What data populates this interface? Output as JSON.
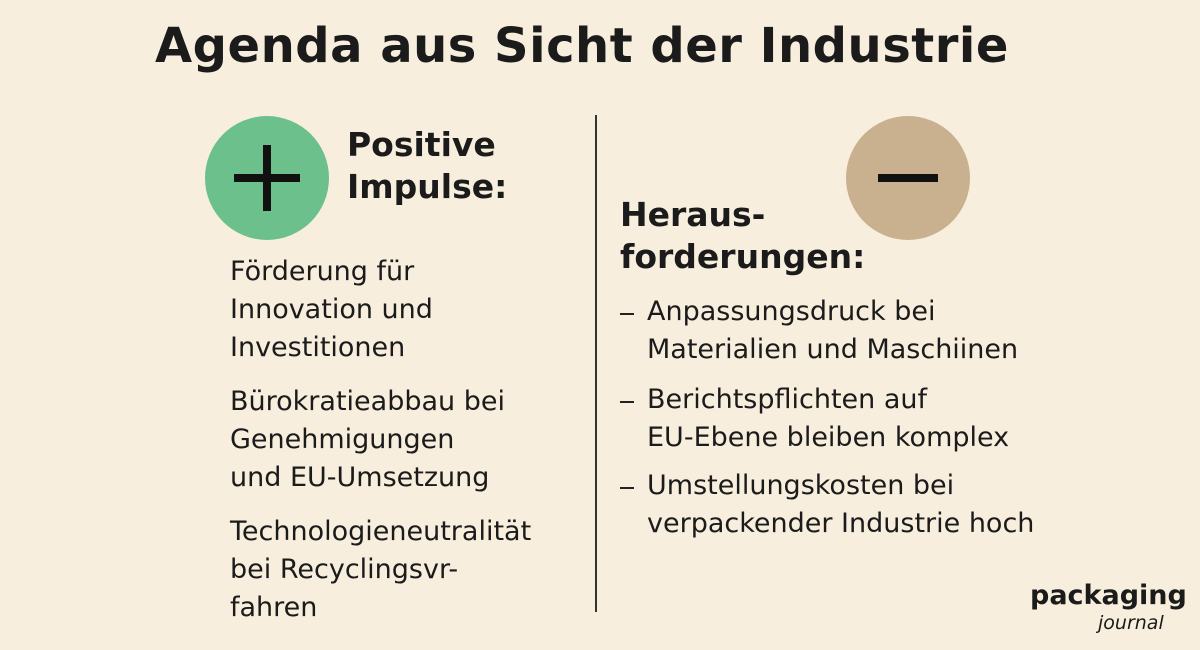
{
  "title": "Agenda aus Sicht der Industrie",
  "positive": {
    "heading": [
      "Positive",
      "Impulse:"
    ],
    "items": [
      [
        "Förderung für",
        "Innovation und",
        "Investitionen"
      ],
      [
        "Bürokratieabbau bei",
        "Genehmigungen",
        "und EU-Umsetzung"
      ],
      [
        "Technologieneutralität",
        "bei Recyclingsvr-",
        "fahren"
      ]
    ]
  },
  "challenges": {
    "heading": [
      "Heraus-",
      "forderungen:"
    ],
    "items": [
      [
        "Anpassungsdruck bei",
        "Materialien und Maschiinen"
      ],
      [
        "Berichtspflichten auf",
        "EU-Ebene bleiben komplex"
      ],
      [
        "Umstellungskosten bei",
        "verpackender Industrie hoch"
      ]
    ]
  },
  "logo": {
    "name": "packaging",
    "subtitle": "journal"
  }
}
